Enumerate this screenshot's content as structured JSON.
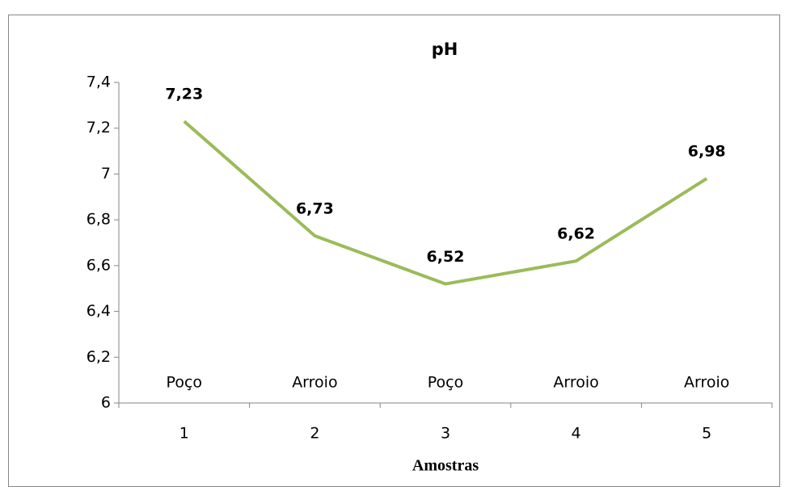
{
  "chart_data": {
    "type": "line",
    "title": "pH",
    "x_label": "Amostras",
    "categories": [
      "1",
      "2",
      "3",
      "4",
      "5"
    ],
    "sample_labels": [
      "Poço",
      "Arroio",
      "Poço",
      "Arroio",
      "Arroio"
    ],
    "values": [
      7.23,
      6.73,
      6.52,
      6.62,
      6.98
    ],
    "value_labels": [
      "7,23",
      "6,73",
      "6,52",
      "6,62",
      "6,98"
    ],
    "color": "#9bbb59",
    "ylim": [
      6,
      7.4
    ],
    "yticks": [
      6,
      {
        "value": 6.2,
        "label": "6,2"
      },
      {
        "value": 6.4,
        "label": "6,4"
      },
      {
        "value": 6.6,
        "label": "6,6"
      },
      {
        "value": 6.8,
        "label": "6,8"
      },
      7,
      {
        "value": 7.2,
        "label": "7,2"
      },
      {
        "value": 7.4,
        "label": "7,4"
      }
    ],
    "grid": false
  }
}
